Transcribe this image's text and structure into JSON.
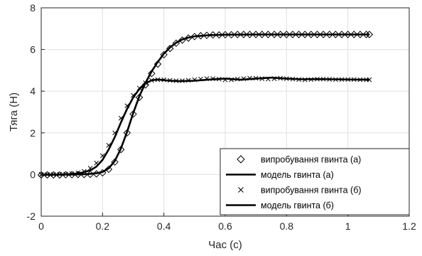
{
  "chart_data": {
    "type": "line",
    "title": "",
    "xlabel": "Час (с)",
    "ylabel": "Тяга (Н)",
    "xlim": [
      0,
      1.2
    ],
    "ylim": [
      -2,
      8
    ],
    "xticks": [
      0,
      0.2,
      0.4,
      0.6,
      0.8,
      1,
      1.2
    ],
    "yticks": [
      -2,
      0,
      2,
      4,
      6,
      8
    ],
    "xtick_labels": [
      "0",
      "0.2",
      "0.4",
      "0.6",
      "0.8",
      "1",
      "1.2"
    ],
    "ytick_labels": [
      "-2",
      "0",
      "2",
      "4",
      "6",
      "8"
    ],
    "grid": true,
    "legend_position": "bottom-right",
    "series": [
      {
        "name": "випробування гвинта (а)",
        "kind": "markers",
        "marker": "diamond",
        "color": "#000000",
        "x": [
          0.0,
          0.02,
          0.04,
          0.06,
          0.08,
          0.1,
          0.12,
          0.14,
          0.16,
          0.18,
          0.2,
          0.22,
          0.24,
          0.26,
          0.28,
          0.3,
          0.32,
          0.34,
          0.36,
          0.38,
          0.4,
          0.42,
          0.44,
          0.46,
          0.48,
          0.5,
          0.52,
          0.54,
          0.56,
          0.58,
          0.6,
          0.62,
          0.64,
          0.66,
          0.68,
          0.7,
          0.72,
          0.74,
          0.76,
          0.78,
          0.8,
          0.82,
          0.84,
          0.86,
          0.88,
          0.9,
          0.92,
          0.94,
          0.96,
          0.98,
          1.0,
          1.02,
          1.04,
          1.06,
          1.07
        ],
        "y": [
          -0.02,
          -0.02,
          -0.02,
          -0.02,
          -0.01,
          -0.01,
          0.0,
          0.0,
          0.01,
          0.03,
          0.08,
          0.25,
          0.6,
          1.2,
          2.0,
          2.9,
          3.7,
          4.3,
          4.85,
          5.3,
          5.75,
          6.05,
          6.3,
          6.45,
          6.55,
          6.62,
          6.66,
          6.68,
          6.7,
          6.7,
          6.71,
          6.71,
          6.72,
          6.72,
          6.72,
          6.72,
          6.72,
          6.72,
          6.72,
          6.72,
          6.72,
          6.72,
          6.72,
          6.72,
          6.72,
          6.72,
          6.72,
          6.72,
          6.72,
          6.72,
          6.72,
          6.72,
          6.72,
          6.72,
          6.72
        ]
      },
      {
        "name": "модель гвинта (а)",
        "kind": "line",
        "color": "#000000",
        "x": [
          0.0,
          0.05,
          0.1,
          0.15,
          0.18,
          0.2,
          0.22,
          0.24,
          0.26,
          0.28,
          0.3,
          0.32,
          0.34,
          0.36,
          0.38,
          0.4,
          0.42,
          0.44,
          0.46,
          0.48,
          0.5,
          0.55,
          0.6,
          0.7,
          0.8,
          0.9,
          1.0,
          1.07
        ],
        "y": [
          0.0,
          0.0,
          0.0,
          0.02,
          0.06,
          0.12,
          0.3,
          0.65,
          1.25,
          2.05,
          2.95,
          3.75,
          4.4,
          4.95,
          5.4,
          5.8,
          6.1,
          6.32,
          6.48,
          6.57,
          6.63,
          6.69,
          6.71,
          6.72,
          6.72,
          6.72,
          6.72,
          6.72
        ]
      },
      {
        "name": "випробування гвинта (б)",
        "kind": "markers",
        "marker": "x",
        "color": "#000000",
        "x": [
          0.0,
          0.02,
          0.04,
          0.06,
          0.08,
          0.1,
          0.12,
          0.14,
          0.16,
          0.18,
          0.2,
          0.22,
          0.24,
          0.26,
          0.28,
          0.3,
          0.32,
          0.34,
          0.36,
          0.38,
          0.4,
          0.42,
          0.44,
          0.46,
          0.48,
          0.5,
          0.52,
          0.54,
          0.56,
          0.58,
          0.6,
          0.62,
          0.64,
          0.66,
          0.68,
          0.7,
          0.72,
          0.74,
          0.76,
          0.78,
          0.8,
          0.82,
          0.84,
          0.86,
          0.88,
          0.9,
          0.92,
          0.94,
          0.96,
          0.98,
          1.0,
          1.02,
          1.04,
          1.06,
          1.07
        ],
        "y": [
          0.0,
          0.0,
          0.0,
          0.01,
          0.02,
          0.04,
          0.08,
          0.15,
          0.3,
          0.55,
          0.9,
          1.4,
          2.0,
          2.7,
          3.3,
          3.8,
          4.15,
          4.4,
          4.52,
          4.55,
          4.55,
          4.52,
          4.5,
          4.5,
          4.52,
          4.55,
          4.58,
          4.6,
          4.6,
          4.58,
          4.55,
          4.55,
          4.58,
          4.6,
          4.62,
          4.62,
          4.6,
          4.58,
          4.6,
          4.62,
          4.6,
          4.58,
          4.56,
          4.55,
          4.56,
          4.58,
          4.58,
          4.57,
          4.56,
          4.56,
          4.56,
          4.56,
          4.55,
          4.55,
          4.55
        ]
      },
      {
        "name": "модель гвинта (б)",
        "kind": "line",
        "color": "#000000",
        "x": [
          0.0,
          0.05,
          0.1,
          0.13,
          0.16,
          0.18,
          0.2,
          0.22,
          0.24,
          0.26,
          0.28,
          0.3,
          0.32,
          0.34,
          0.36,
          0.38,
          0.4,
          0.42,
          0.45,
          0.5,
          0.55,
          0.6,
          0.65,
          0.7,
          0.75,
          0.8,
          0.85,
          0.9,
          0.95,
          1.0,
          1.07
        ],
        "y": [
          0.0,
          0.0,
          0.02,
          0.08,
          0.2,
          0.38,
          0.7,
          1.2,
          1.8,
          2.5,
          3.15,
          3.7,
          4.1,
          4.38,
          4.52,
          4.56,
          4.53,
          4.5,
          4.48,
          4.5,
          4.56,
          4.6,
          4.55,
          4.6,
          4.65,
          4.6,
          4.57,
          4.58,
          4.57,
          4.56,
          4.55
        ]
      }
    ]
  }
}
